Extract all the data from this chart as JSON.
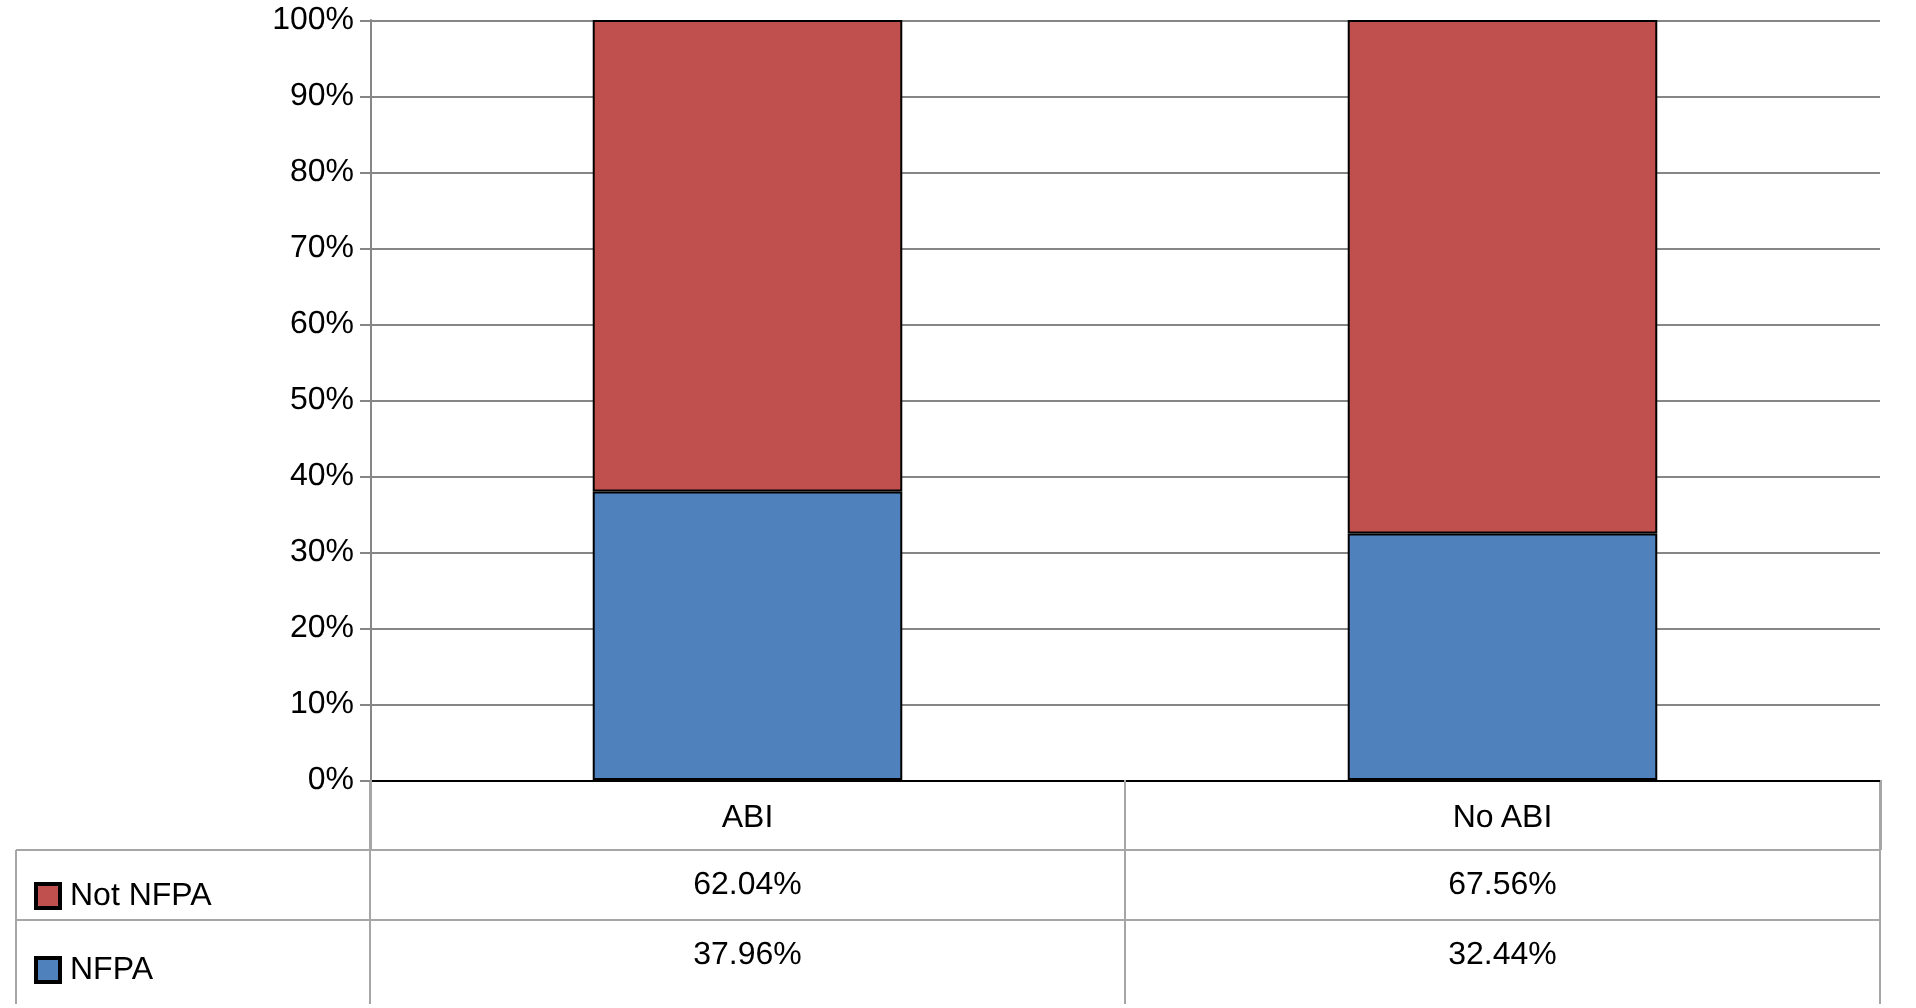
{
  "chart_data": {
    "type": "bar",
    "stacked": true,
    "categories": [
      "ABI",
      "No ABI"
    ],
    "series": [
      {
        "name": "NFPA",
        "color": "#4f81bd",
        "values": [
          37.96,
          32.44
        ],
        "value_labels": [
          "37.96%",
          "32.44%"
        ]
      },
      {
        "name": "Not NFPA",
        "color": "#c0504d",
        "values": [
          62.04,
          67.56
        ],
        "value_labels": [
          "62.04%",
          "67.56%"
        ]
      }
    ],
    "ylim": [
      0,
      100
    ],
    "yticks": [
      {
        "value": 0,
        "label": "0%"
      },
      {
        "value": 10,
        "label": "10%"
      },
      {
        "value": 20,
        "label": "20%"
      },
      {
        "value": 30,
        "label": "30%"
      },
      {
        "value": 40,
        "label": "40%"
      },
      {
        "value": 50,
        "label": "50%"
      },
      {
        "value": 60,
        "label": "60%"
      },
      {
        "value": 70,
        "label": "70%"
      },
      {
        "value": 80,
        "label": "80%"
      },
      {
        "value": 90,
        "label": "90%"
      },
      {
        "value": 100,
        "label": "100%"
      }
    ],
    "grid": "y",
    "legend": "bottom left"
  }
}
